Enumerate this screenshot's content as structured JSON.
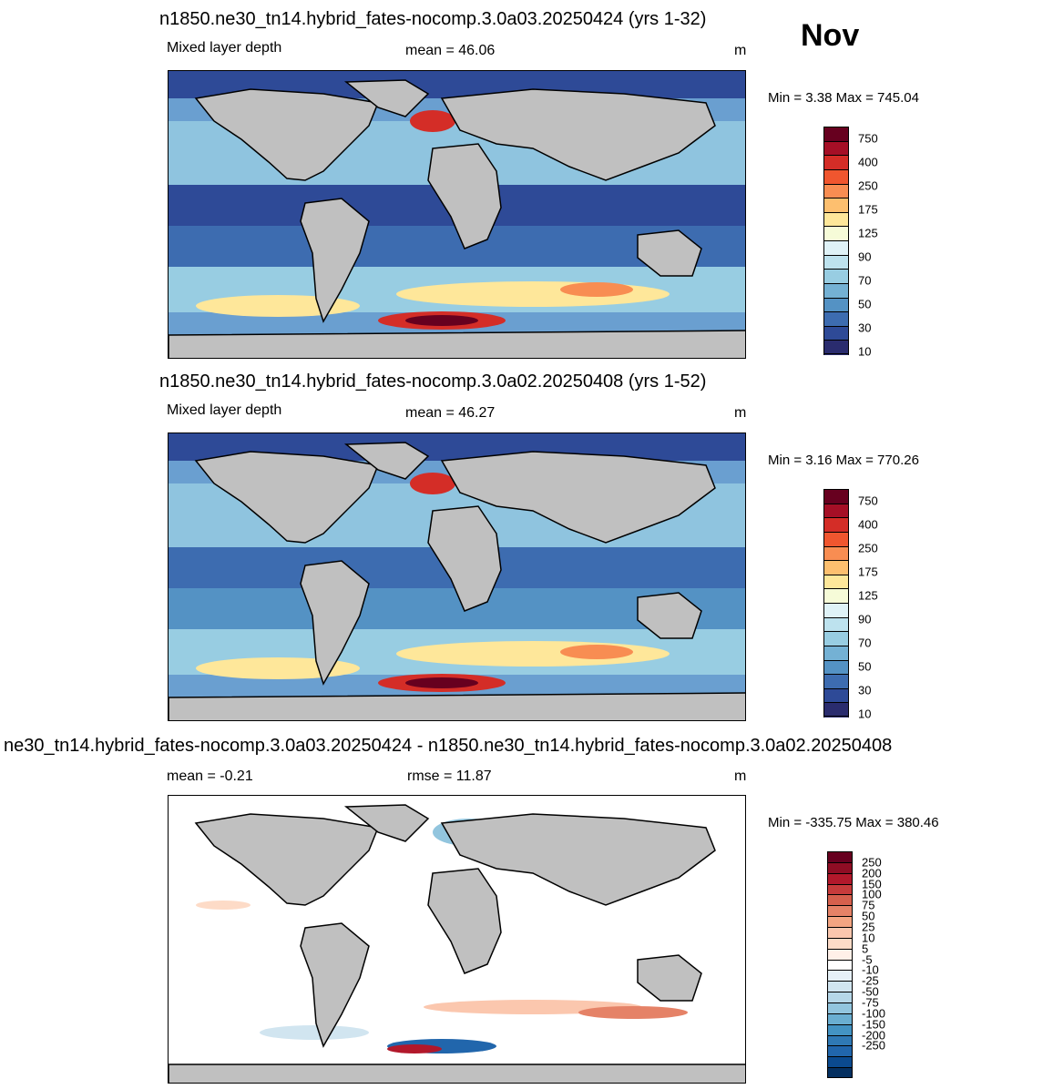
{
  "month": "Nov",
  "panels": [
    {
      "title": "n1850.ne30_tn14.hybrid_fates-nocomp.3.0a03.20250424 (yrs 1-32)",
      "left_label": "Mixed layer depth",
      "center_label": "mean =  46.06",
      "units": "m",
      "minmax": "Min =   3.38 Max = 745.04",
      "colorbar": {
        "ticks": [
          "750",
          "400",
          "250",
          "175",
          "125",
          "90",
          "70",
          "50",
          "30",
          "10"
        ],
        "colors": [
          "#67001f",
          "#a50f26",
          "#d42d27",
          "#f0562f",
          "#f88d52",
          "#fdbf6f",
          "#fee79a",
          "#f6fbd8",
          "#dff2f7",
          "#bde2ee",
          "#98cde2",
          "#74b1d4",
          "#5492c4",
          "#3d6cb0",
          "#2e4a97",
          "#2a2c6e"
        ]
      }
    },
    {
      "title": "n1850.ne30_tn14.hybrid_fates-nocomp.3.0a02.20250408 (yrs 1-52)",
      "left_label": "Mixed layer depth",
      "center_label": "mean =  46.27",
      "units": "m",
      "minmax": "Min =   3.16 Max = 770.26",
      "colorbar": {
        "ticks": [
          "750",
          "400",
          "250",
          "175",
          "125",
          "90",
          "70",
          "50",
          "30",
          "10"
        ],
        "colors": [
          "#67001f",
          "#a50f26",
          "#d42d27",
          "#f0562f",
          "#f88d52",
          "#fdbf6f",
          "#fee79a",
          "#f6fbd8",
          "#dff2f7",
          "#bde2ee",
          "#98cde2",
          "#74b1d4",
          "#5492c4",
          "#3d6cb0",
          "#2e4a97",
          "#2a2c6e"
        ]
      }
    },
    {
      "title": "ne30_tn14.hybrid_fates-nocomp.3.0a03.20250424 - n1850.ne30_tn14.hybrid_fates-nocomp.3.0a02.20250408",
      "left_label": "mean =  -0.21",
      "center_label": "rmse =  11.87",
      "units": "m",
      "minmax": "Min = -335.75 Max = 380.46",
      "colorbar": {
        "ticks": [
          "250",
          "200",
          "150",
          "100",
          "75",
          "50",
          "25",
          "10",
          "5",
          "-5",
          "-10",
          "-25",
          "-50",
          "-75",
          "-100",
          "-150",
          "-200",
          "-250"
        ],
        "colors": [
          "#67001f",
          "#8f0d24",
          "#b2182b",
          "#c73b3b",
          "#d6604d",
          "#e58267",
          "#f4a582",
          "#fbc7ae",
          "#fddbc7",
          "#fff0e8",
          "#ffffff",
          "#e6f1f7",
          "#d1e5f0",
          "#b6d7e8",
          "#92c5de",
          "#6aaed1",
          "#4393c3",
          "#2f79b5",
          "#2166ac",
          "#0b4a8f",
          "#053061"
        ]
      }
    }
  ]
}
